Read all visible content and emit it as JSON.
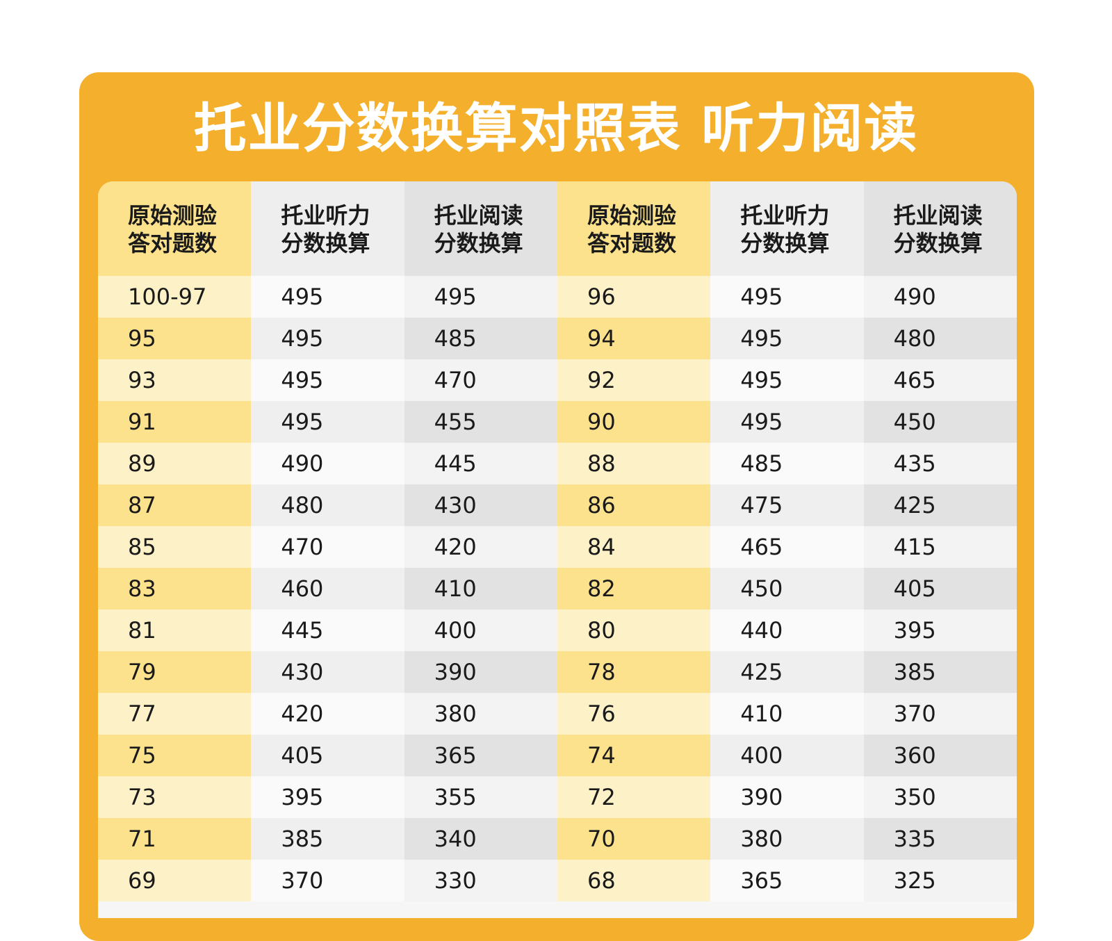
{
  "title": "托业分数换算对照表 听力阅读",
  "headers": [
    [
      "原始测验",
      "答对题数"
    ],
    [
      "托业听力",
      "分数换算"
    ],
    [
      "托业阅读",
      "分数换算"
    ],
    [
      "原始测验",
      "答对题数"
    ],
    [
      "托业听力",
      "分数换算"
    ],
    [
      "托业阅读",
      "分数换算"
    ]
  ],
  "rows": [
    [
      "100-97",
      "495",
      "495",
      "96",
      "495",
      "490"
    ],
    [
      "95",
      "495",
      "485",
      "94",
      "495",
      "480"
    ],
    [
      "93",
      "495",
      "470",
      "92",
      "495",
      "465"
    ],
    [
      "91",
      "495",
      "455",
      "90",
      "495",
      "450"
    ],
    [
      "89",
      "490",
      "445",
      "88",
      "485",
      "435"
    ],
    [
      "87",
      "480",
      "430",
      "86",
      "475",
      "425"
    ],
    [
      "85",
      "470",
      "420",
      "84",
      "465",
      "415"
    ],
    [
      "83",
      "460",
      "410",
      "82",
      "450",
      "405"
    ],
    [
      "81",
      "445",
      "400",
      "80",
      "440",
      "395"
    ],
    [
      "79",
      "430",
      "390",
      "78",
      "425",
      "385"
    ],
    [
      "77",
      "420",
      "380",
      "76",
      "410",
      "370"
    ],
    [
      "75",
      "405",
      "365",
      "74",
      "400",
      "360"
    ],
    [
      "73",
      "395",
      "355",
      "72",
      "390",
      "350"
    ],
    [
      "71",
      "385",
      "340",
      "70",
      "380",
      "335"
    ],
    [
      "69",
      "370",
      "330",
      "68",
      "365",
      "325"
    ]
  ],
  "colors": {
    "accent": "#f4b02c",
    "yellow_col": "#fde28d",
    "yellow_col_light": "#fdf1c8"
  }
}
